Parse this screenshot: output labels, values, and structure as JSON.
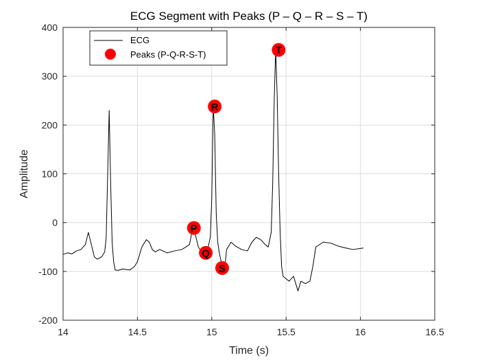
{
  "chart_data": {
    "type": "line",
    "title": "ECG Segment with Peaks (P – Q – R – S – T)",
    "xlabel": "Time (s)",
    "ylabel": "Amplitude",
    "xlim": [
      14,
      16.5
    ],
    "ylim": [
      -200,
      400
    ],
    "xticks": [
      14,
      14.5,
      15,
      15.5,
      16,
      16.5
    ],
    "xtick_labels": [
      "14",
      "14.5",
      "15",
      "15.5",
      "16",
      "16.5"
    ],
    "yticks": [
      -200,
      -100,
      0,
      100,
      200,
      300,
      400
    ],
    "ytick_labels": [
      "-200",
      "-100",
      "0",
      "100",
      "200",
      "300",
      "400"
    ],
    "grid": true,
    "legend_position": "top-left",
    "colors": {
      "ecg": "#000000",
      "peaks": "#ff0000",
      "grid": "#dcdcdc",
      "axis": "#262626"
    },
    "series": [
      {
        "name": "ECG",
        "style": "line",
        "x": [
          14.0,
          14.03,
          14.06,
          14.09,
          14.12,
          14.15,
          14.17,
          14.19,
          14.21,
          14.23,
          14.26,
          14.28,
          14.29,
          14.3,
          14.31,
          14.32,
          14.33,
          14.34,
          14.35,
          14.37,
          14.4,
          14.45,
          14.48,
          14.5,
          14.53,
          14.56,
          14.58,
          14.6,
          14.62,
          14.65,
          14.7,
          14.75,
          14.8,
          14.85,
          14.87,
          14.89,
          14.91,
          14.93,
          14.95,
          14.97,
          14.99,
          15.0,
          15.01,
          15.02,
          15.03,
          15.04,
          15.05,
          15.06,
          15.07,
          15.08,
          15.09,
          15.1,
          15.13,
          15.16,
          15.2,
          15.24,
          15.27,
          15.3,
          15.33,
          15.36,
          15.38,
          15.4,
          15.41,
          15.42,
          15.43,
          15.44,
          15.45,
          15.46,
          15.47,
          15.48,
          15.5,
          15.52,
          15.55,
          15.58,
          15.6,
          15.63,
          15.66,
          15.68,
          15.7,
          15.75,
          15.8,
          15.85,
          15.9,
          15.95,
          16.0,
          16.02
        ],
        "y": [
          -65,
          -62,
          -64,
          -58,
          -55,
          -45,
          -20,
          -45,
          -70,
          -75,
          -70,
          -60,
          -30,
          100,
          230,
          80,
          -40,
          -80,
          -97,
          -98,
          -95,
          -97,
          -90,
          -80,
          -50,
          -35,
          -40,
          -55,
          -60,
          -55,
          -62,
          -58,
          -55,
          -45,
          -15,
          -25,
          -50,
          -60,
          -62,
          -60,
          -30,
          50,
          240,
          180,
          20,
          -40,
          -60,
          -75,
          -90,
          -95,
          -85,
          -55,
          -40,
          -48,
          -55,
          -58,
          -40,
          -30,
          -35,
          -45,
          -50,
          -20,
          80,
          250,
          355,
          260,
          100,
          -20,
          -90,
          -110,
          -115,
          -120,
          -110,
          -140,
          -120,
          -125,
          -120,
          -90,
          -50,
          -40,
          -42,
          -48,
          -52,
          -55,
          -53,
          -52
        ]
      },
      {
        "name": "Peaks (P-Q-R-S-T)",
        "style": "markers",
        "x": [
          14.88,
          14.96,
          15.02,
          15.07,
          15.45
        ],
        "y": [
          -11,
          -62,
          238,
          -93,
          354
        ],
        "labels": [
          "P",
          "Q",
          "R",
          "S",
          "T"
        ]
      }
    ]
  }
}
